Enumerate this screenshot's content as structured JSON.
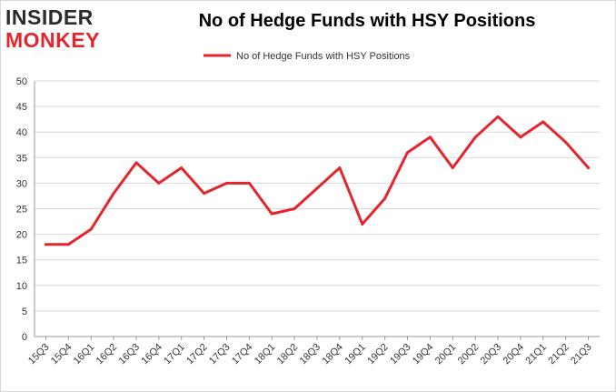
{
  "logo": {
    "top": "INSIDER",
    "bottom": "MONKEY"
  },
  "colors": {
    "line": "#e3262d",
    "grid": "#d9d9d9",
    "axis": "#999999",
    "logo_dark": "#2b2b2b",
    "logo_red": "#e3262d"
  },
  "chart_data": {
    "type": "line",
    "title": "No of Hedge Funds with HSY Positions",
    "xlabel": "",
    "ylabel": "",
    "ylim": [
      0,
      50
    ],
    "yticks": [
      0,
      5,
      10,
      15,
      20,
      25,
      30,
      35,
      40,
      45,
      50
    ],
    "grid": true,
    "legend_position": "top-center",
    "categories": [
      "15Q3",
      "15Q4",
      "16Q1",
      "16Q2",
      "16Q3",
      "16Q4",
      "17Q1",
      "17Q2",
      "17Q3",
      "17Q4",
      "18Q1",
      "18Q2",
      "18Q3",
      "18Q4",
      "19Q1",
      "19Q2",
      "19Q3",
      "19Q4",
      "20Q1",
      "20Q2",
      "20Q3",
      "20Q4",
      "21Q1",
      "21Q2",
      "21Q3"
    ],
    "series": [
      {
        "name": "No of Hedge Funds with HSY Positions",
        "values": [
          18,
          18,
          21,
          28,
          34,
          30,
          33,
          28,
          30,
          30,
          24,
          25,
          29,
          33,
          22,
          27,
          36,
          39,
          33,
          39,
          43,
          39,
          42,
          38,
          33
        ]
      }
    ]
  }
}
